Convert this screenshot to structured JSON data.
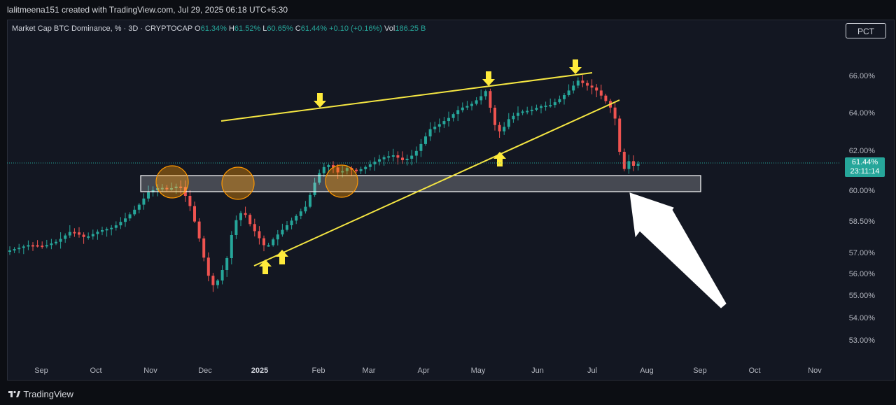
{
  "header": {
    "attribution": "lalitmeena151 created with TradingView.com, Jul 29, 2025 06:18 UTC+5:30"
  },
  "legend": {
    "symbol": "Market Cap BTC Dominance, % · 3D · CRYPTOCAP",
    "o_label": "O",
    "o_value": "61.34%",
    "h_label": "H",
    "h_value": "61.52%",
    "l_label": "L",
    "l_value": "60.65%",
    "c_label": "C",
    "c_value": "61.44%",
    "change": "+0.10 (+0.16%)",
    "vol_label": "Vol",
    "vol_value": "186.25 B"
  },
  "toolbar": {
    "scale_button": "PCT"
  },
  "price_tag": {
    "value": "61.44%",
    "countdown": "23:11:14"
  },
  "y_axis": {
    "labels": [
      "66.00%",
      "64.00%",
      "62.00%",
      "60.00%",
      "58.50%",
      "57.00%",
      "56.00%",
      "55.00%",
      "54.00%",
      "53.00%"
    ]
  },
  "x_axis": {
    "labels": [
      "Sep",
      "Oct",
      "Nov",
      "Dec",
      "2025",
      "Feb",
      "Mar",
      "Apr",
      "May",
      "Jun",
      "Jul",
      "Aug",
      "Sep",
      "Oct",
      "Nov"
    ]
  },
  "colors": {
    "up": "#26a69a",
    "down": "#ef5350",
    "trendline": "#f5e642",
    "arrow": "#ffeb3b",
    "circle": "#ff9800",
    "zone": "#ffffff"
  },
  "footer": {
    "brand": "TradingView"
  }
}
